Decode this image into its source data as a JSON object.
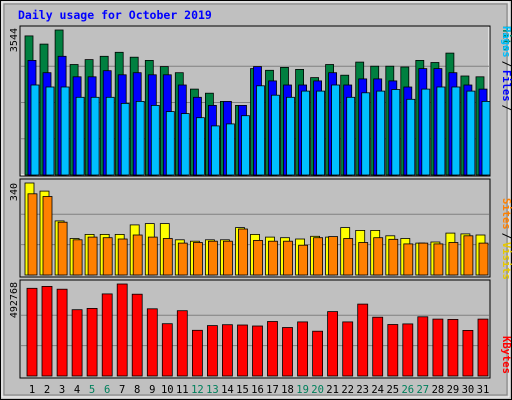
{
  "chart_data": [
    {
      "type": "bar",
      "title": "Daily usage for October 2019",
      "categories": [
        "1",
        "2",
        "3",
        "4",
        "5",
        "6",
        "7",
        "8",
        "9",
        "10",
        "11",
        "12",
        "13",
        "14",
        "15",
        "16",
        "17",
        "18",
        "19",
        "20",
        "21",
        "22",
        "23",
        "24",
        "25",
        "26",
        "27",
        "28",
        "29",
        "30",
        "31"
      ],
      "weekend_days": [
        "5",
        "6",
        "12",
        "13",
        "19",
        "20",
        "26",
        "27"
      ],
      "ymax_label": "3544",
      "ylim": [
        0,
        3544
      ],
      "legend": [
        "Pages",
        "Files",
        "Hits"
      ],
      "series": [
        {
          "name": "Hits",
          "color": "#008040",
          "values": [
            3400,
            3200,
            3544,
            2700,
            2820,
            2900,
            3000,
            2880,
            2800,
            2650,
            2500,
            2100,
            2000,
            1800,
            1700,
            2600,
            2560,
            2630,
            2580,
            2380,
            2700,
            2440,
            2760,
            2660,
            2660,
            2640,
            2800,
            2750,
            2980,
            2420,
            2400
          ]
        },
        {
          "name": "Files",
          "color": "#0000ff",
          "values": [
            2800,
            2500,
            2900,
            2400,
            2400,
            2550,
            2450,
            2500,
            2450,
            2450,
            2200,
            1900,
            1700,
            1800,
            1700,
            2650,
            2300,
            2200,
            2200,
            2300,
            2500,
            2200,
            2350,
            2350,
            2300,
            2150,
            2600,
            2600,
            2500,
            2200,
            2100
          ]
        },
        {
          "name": "Pages",
          "color": "#00bfff",
          "values": [
            2200,
            2150,
            2150,
            1900,
            1900,
            1900,
            1750,
            1800,
            1700,
            1550,
            1500,
            1400,
            1200,
            1250,
            1450,
            2180,
            1950,
            1900,
            2050,
            2050,
            2200,
            1900,
            2010,
            2050,
            2090,
            1850,
            2100,
            2150,
            2150,
            2050,
            1800
          ]
        }
      ]
    },
    {
      "type": "bar",
      "ymax_label": "340",
      "ylim": [
        0,
        340
      ],
      "legend": [
        "Sites",
        "Visits"
      ],
      "series": [
        {
          "name": "Visits",
          "color": "#ffff00",
          "values": [
            340,
            310,
            200,
            135,
            150,
            150,
            150,
            185,
            190,
            190,
            130,
            125,
            130,
            130,
            175,
            150,
            140,
            138,
            133,
            143,
            140,
            175,
            165,
            165,
            145,
            135,
            118,
            122,
            155,
            152,
            148
          ]
        },
        {
          "name": "Sites",
          "color": "#ff8000",
          "values": [
            300,
            290,
            195,
            130,
            140,
            138,
            133,
            148,
            140,
            135,
            118,
            120,
            125,
            125,
            170,
            128,
            125,
            125,
            110,
            138,
            142,
            135,
            120,
            138,
            132,
            115,
            118,
            115,
            120,
            145,
            118
          ]
        }
      ]
    },
    {
      "type": "bar",
      "ymax_label": "492768",
      "ylim": [
        0,
        492768
      ],
      "legend": [
        "KBytes"
      ],
      "series": [
        {
          "name": "KBytes",
          "color": "#ff0000",
          "values": [
            470000,
            480000,
            465000,
            355000,
            362000,
            440000,
            492768,
            438000,
            360000,
            280000,
            350000,
            245000,
            270000,
            275000,
            273000,
            268000,
            292000,
            260000,
            290000,
            240000,
            345000,
            290000,
            385000,
            315000,
            276000,
            279000,
            317000,
            305000,
            303000,
            244000,
            305000
          ]
        }
      ]
    }
  ]
}
